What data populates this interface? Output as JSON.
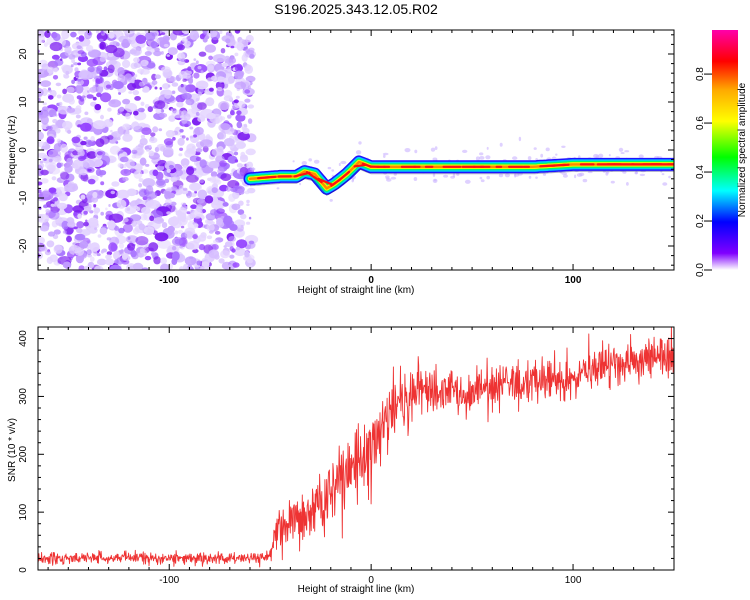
{
  "chart_data": [
    {
      "type": "heatmap",
      "title": "S196.2025.343.12.05.R02",
      "xlabel": "Height of straight line (km)",
      "ylabel": "Frequency (Hz)",
      "xlim": [
        -165,
        150
      ],
      "ylim": [
        -25,
        25
      ],
      "xticks": [
        -100,
        0,
        100
      ],
      "yticks": [
        -20,
        -10,
        0,
        10,
        20
      ],
      "colorbar": {
        "label": "Normalized spectral amplitude",
        "range": [
          0,
          0.98
        ],
        "ticks": [
          0.0,
          0.2,
          0.4,
          0.6,
          0.8
        ],
        "colormap": [
          "#ff00ff",
          "#ff0000",
          "#ffaa00",
          "#ffff00",
          "#00ff00",
          "#00ffff",
          "#0000ff",
          "#8000ff",
          "#ffffff"
        ]
      },
      "noise_region": {
        "x": [
          -165,
          -60
        ],
        "color": "#9040ff"
      },
      "ridge": {
        "x": [
          -60,
          -45,
          -37,
          -33,
          -28,
          -22,
          -18,
          -12,
          -6,
          0,
          20,
          40,
          60,
          80,
          100,
          120,
          150
        ],
        "freq": [
          -6,
          -5.5,
          -5.5,
          -4.5,
          -5,
          -8,
          -7,
          -5,
          -2.5,
          -3.5,
          -3.5,
          -3.5,
          -3.5,
          -3.5,
          -3,
          -3,
          -3
        ]
      }
    },
    {
      "type": "line",
      "xlabel": "Height of straight line (km)",
      "ylabel": "SNR (10 * v/v)",
      "xlim": [
        -165,
        150
      ],
      "ylim": [
        0,
        420
      ],
      "xticks": [
        -100,
        0,
        100
      ],
      "yticks": [
        0,
        100,
        200,
        300,
        400
      ],
      "series": [
        {
          "name": "SNR",
          "color": "#ee3333",
          "x": [
            -165,
            -150,
            -130,
            -110,
            -90,
            -70,
            -50,
            -48,
            -40,
            -30,
            -20,
            -10,
            0,
            5,
            10,
            20,
            25,
            30,
            40,
            50,
            60,
            70,
            80,
            90,
            100,
            110,
            120,
            130,
            140,
            150
          ],
          "mean": [
            20,
            20,
            22,
            21,
            20,
            20,
            22,
            55,
            75,
            100,
            135,
            170,
            200,
            250,
            280,
            305,
            310,
            310,
            305,
            305,
            320,
            320,
            325,
            330,
            335,
            345,
            355,
            360,
            365,
            370
          ],
          "spread": [
            9,
            9,
            9,
            9,
            9,
            9,
            9,
            35,
            40,
            45,
            50,
            55,
            60,
            55,
            45,
            40,
            35,
            35,
            35,
            35,
            35,
            35,
            35,
            35,
            35,
            35,
            35,
            35,
            35,
            35
          ]
        }
      ]
    }
  ]
}
